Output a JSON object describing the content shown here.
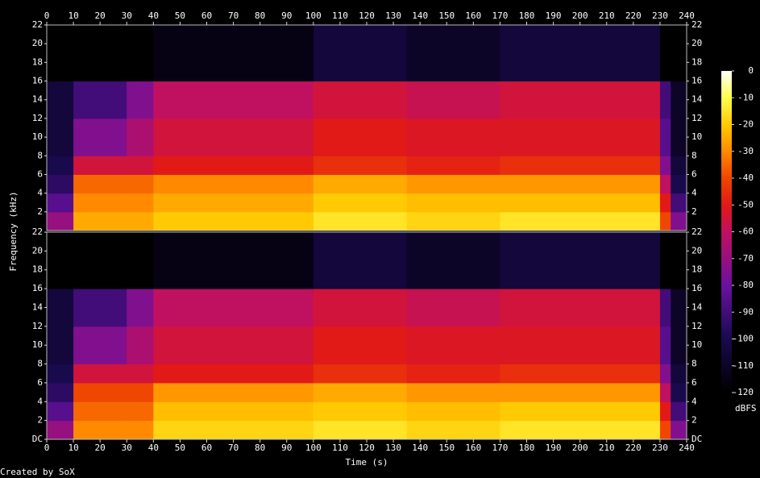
{
  "chart_data": {
    "type": "spectrogram",
    "xlabel": "Time (s)",
    "ylabel": "Frequency (kHz)",
    "footer": "Created by SoX",
    "xlim": [
      0,
      240
    ],
    "xticks": [
      0,
      10,
      20,
      30,
      40,
      50,
      60,
      70,
      80,
      90,
      100,
      110,
      120,
      130,
      140,
      150,
      160,
      170,
      180,
      190,
      200,
      210,
      220,
      230,
      240
    ],
    "ylim": [
      0,
      22
    ],
    "time_edges": [
      0,
      10,
      30,
      40,
      100,
      135,
      170,
      230,
      234,
      240
    ],
    "freq_edges": [
      0,
      2,
      4,
      6,
      8,
      12,
      16,
      22
    ],
    "clim": [
      -120,
      0
    ],
    "cticks": [
      -120,
      -110,
      -100,
      -90,
      -80,
      -70,
      -60,
      -50,
      -40,
      -30,
      -20,
      -10,
      0
    ],
    "clabel": "dBFS",
    "channels": [
      {
        "yticks": [
          2,
          4,
          6,
          8,
          10,
          12,
          14,
          16,
          18,
          20,
          22
        ],
        "values": [
          [
            -70,
            -85,
            -95,
            -100,
            -105,
            -105,
            -120
          ],
          [
            -25,
            -30,
            -35,
            -55,
            -75,
            -90,
            -120
          ],
          [
            -25,
            -30,
            -35,
            -55,
            -65,
            -75,
            -120
          ],
          [
            -20,
            -25,
            -30,
            -50,
            -55,
            -60,
            -115
          ],
          [
            -15,
            -20,
            -25,
            -45,
            -50,
            -55,
            -105
          ],
          [
            -18,
            -22,
            -28,
            -48,
            -52,
            -58,
            -110
          ],
          [
            -15,
            -22,
            -28,
            -45,
            -52,
            -55,
            -105
          ],
          [
            -40,
            -50,
            -60,
            -75,
            -85,
            -90,
            -120
          ],
          [
            -75,
            -90,
            -100,
            -105,
            -110,
            -110,
            -120
          ]
        ]
      },
      {
        "yticks": [
          {
            "value": 0,
            "label": "DC"
          },
          2,
          4,
          6,
          8,
          10,
          12,
          14,
          16,
          18,
          20,
          22
        ],
        "values": [
          [
            -70,
            -85,
            -95,
            -100,
            -105,
            -105,
            -120
          ],
          [
            -30,
            -35,
            -40,
            -55,
            -75,
            -90,
            -120
          ],
          [
            -30,
            -35,
            -40,
            -55,
            -65,
            -75,
            -120
          ],
          [
            -18,
            -22,
            -28,
            -50,
            -55,
            -60,
            -115
          ],
          [
            -15,
            -20,
            -25,
            -45,
            -50,
            -55,
            -105
          ],
          [
            -18,
            -22,
            -28,
            -48,
            -52,
            -58,
            -110
          ],
          [
            -15,
            -20,
            -28,
            -45,
            -52,
            -55,
            -105
          ],
          [
            -40,
            -50,
            -60,
            -75,
            -85,
            -90,
            -120
          ],
          [
            -75,
            -90,
            -100,
            -105,
            -110,
            -110,
            -120
          ]
        ]
      }
    ]
  }
}
